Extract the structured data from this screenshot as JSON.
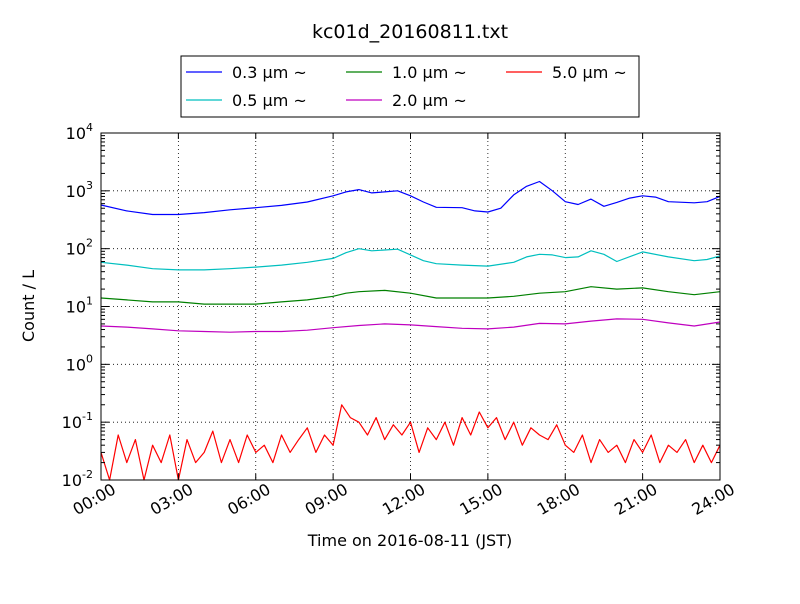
{
  "chart_data": {
    "type": "line",
    "title": "kc01d_20160811.txt",
    "xlabel": "Time on 2016-08-11 (JST)",
    "ylabel": "Count / L",
    "yscale": "log",
    "ylim": [
      0.01,
      10000
    ],
    "xlim": [
      "2016-08-11 00:00",
      "2016-08-12 00:00"
    ],
    "grid": true,
    "legend_position": "top",
    "x_ticks": [
      "00:00",
      "03:00",
      "06:00",
      "09:00",
      "12:00",
      "15:00",
      "18:00",
      "21:00",
      "24:00"
    ],
    "y_ticks": [
      {
        "base": "10",
        "exp": "-2",
        "value": 0.01
      },
      {
        "base": "10",
        "exp": "-1",
        "value": 0.1
      },
      {
        "base": "10",
        "exp": "0",
        "value": 1
      },
      {
        "base": "10",
        "exp": "1",
        "value": 10
      },
      {
        "base": "10",
        "exp": "2",
        "value": 100
      },
      {
        "base": "10",
        "exp": "3",
        "value": 1000
      },
      {
        "base": "10",
        "exp": "4",
        "value": 10000
      }
    ],
    "series": [
      {
        "name": "0.3 μm ~",
        "color": "#0000ff",
        "x": [
          "00:00",
          "01:00",
          "02:00",
          "03:00",
          "04:00",
          "05:00",
          "06:00",
          "07:00",
          "08:00",
          "09:00",
          "09:30",
          "10:00",
          "10:30",
          "11:00",
          "11:30",
          "12:00",
          "12:30",
          "13:00",
          "14:00",
          "14:30",
          "15:00",
          "15:30",
          "16:00",
          "16:30",
          "17:00",
          "17:30",
          "18:00",
          "18:30",
          "19:00",
          "19:30",
          "20:00",
          "20:30",
          "21:00",
          "21:30",
          "22:00",
          "23:00",
          "23:30",
          "24:00"
        ],
        "y": [
          570,
          450,
          390,
          390,
          420,
          470,
          510,
          560,
          640,
          820,
          960,
          1050,
          920,
          960,
          1000,
          820,
          640,
          520,
          510,
          450,
          430,
          500,
          850,
          1200,
          1450,
          1000,
          650,
          580,
          720,
          540,
          630,
          750,
          820,
          780,
          650,
          620,
          650,
          800
        ]
      },
      {
        "name": "0.5 μm ~",
        "color": "#00bfbf",
        "x": [
          "00:00",
          "01:00",
          "02:00",
          "03:00",
          "04:00",
          "05:00",
          "06:00",
          "07:00",
          "08:00",
          "09:00",
          "09:30",
          "10:00",
          "10:30",
          "11:00",
          "11:30",
          "12:00",
          "12:30",
          "13:00",
          "14:00",
          "15:00",
          "16:00",
          "16:30",
          "17:00",
          "17:30",
          "18:00",
          "18:30",
          "19:00",
          "19:30",
          "20:00",
          "21:00",
          "22:00",
          "23:00",
          "23:30",
          "24:00"
        ],
        "y": [
          58,
          52,
          45,
          43,
          43,
          45,
          48,
          52,
          58,
          68,
          85,
          100,
          92,
          95,
          98,
          78,
          62,
          55,
          52,
          50,
          58,
          72,
          80,
          78,
          70,
          72,
          92,
          80,
          60,
          88,
          72,
          62,
          65,
          75
        ]
      },
      {
        "name": "1.0 μm ~",
        "color": "#008000",
        "x": [
          "00:00",
          "01:00",
          "02:00",
          "03:00",
          "04:00",
          "05:00",
          "06:00",
          "07:00",
          "08:00",
          "09:00",
          "09:30",
          "10:00",
          "11:00",
          "12:00",
          "13:00",
          "14:00",
          "15:00",
          "16:00",
          "17:00",
          "18:00",
          "19:00",
          "20:00",
          "21:00",
          "22:00",
          "23:00",
          "24:00"
        ],
        "y": [
          14,
          13,
          12,
          12,
          11,
          11,
          11,
          12,
          13,
          15,
          17,
          18,
          19,
          17,
          14,
          14,
          14,
          15,
          17,
          18,
          22,
          20,
          21,
          18,
          16,
          18
        ]
      },
      {
        "name": "2.0 μm ~",
        "color": "#bf00bf",
        "x": [
          "00:00",
          "01:00",
          "02:00",
          "03:00",
          "04:00",
          "05:00",
          "06:00",
          "07:00",
          "08:00",
          "09:00",
          "10:00",
          "11:00",
          "12:00",
          "13:00",
          "14:00",
          "15:00",
          "16:00",
          "17:00",
          "18:00",
          "19:00",
          "20:00",
          "21:00",
          "22:00",
          "23:00",
          "24:00"
        ],
        "y": [
          4.6,
          4.4,
          4.1,
          3.8,
          3.7,
          3.6,
          3.7,
          3.7,
          3.9,
          4.3,
          4.7,
          5.0,
          4.8,
          4.5,
          4.2,
          4.1,
          4.4,
          5.1,
          5.0,
          5.6,
          6.1,
          6.0,
          5.2,
          4.6,
          5.4
        ]
      },
      {
        "name": "5.0 μm ~",
        "color": "#ff0000",
        "x": [
          "00:00",
          "00:20",
          "00:40",
          "01:00",
          "01:20",
          "01:40",
          "02:00",
          "02:20",
          "02:40",
          "03:00",
          "03:20",
          "03:40",
          "04:00",
          "04:20",
          "04:40",
          "05:00",
          "05:20",
          "05:40",
          "06:00",
          "06:20",
          "06:40",
          "07:00",
          "07:20",
          "07:40",
          "08:00",
          "08:20",
          "08:40",
          "09:00",
          "09:20",
          "09:40",
          "10:00",
          "10:20",
          "10:40",
          "11:00",
          "11:20",
          "11:40",
          "12:00",
          "12:20",
          "12:40",
          "13:00",
          "13:20",
          "13:40",
          "14:00",
          "14:20",
          "14:40",
          "15:00",
          "15:20",
          "15:40",
          "16:00",
          "16:20",
          "16:40",
          "17:00",
          "17:20",
          "17:40",
          "18:00",
          "18:20",
          "18:40",
          "19:00",
          "19:20",
          "19:40",
          "20:00",
          "20:20",
          "20:40",
          "21:00",
          "21:20",
          "21:40",
          "22:00",
          "22:20",
          "22:40",
          "23:00",
          "23:20",
          "23:40",
          "24:00"
        ],
        "y": [
          0.03,
          0.01,
          0.06,
          0.02,
          0.05,
          0.01,
          0.04,
          0.02,
          0.06,
          0.01,
          0.05,
          0.02,
          0.03,
          0.07,
          0.02,
          0.05,
          0.02,
          0.06,
          0.03,
          0.04,
          0.02,
          0.06,
          0.03,
          0.05,
          0.08,
          0.03,
          0.06,
          0.04,
          0.2,
          0.12,
          0.1,
          0.06,
          0.12,
          0.05,
          0.09,
          0.06,
          0.1,
          0.03,
          0.08,
          0.05,
          0.1,
          0.04,
          0.12,
          0.06,
          0.15,
          0.08,
          0.12,
          0.05,
          0.1,
          0.04,
          0.08,
          0.06,
          0.05,
          0.09,
          0.04,
          0.03,
          0.06,
          0.02,
          0.05,
          0.03,
          0.04,
          0.02,
          0.05,
          0.03,
          0.06,
          0.02,
          0.04,
          0.03,
          0.05,
          0.02,
          0.04,
          0.02,
          0.04
        ]
      }
    ]
  }
}
